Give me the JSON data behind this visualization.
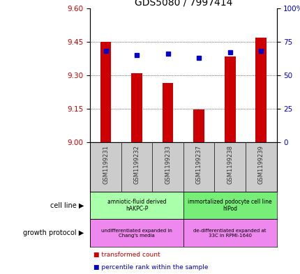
{
  "title": "GDS5080 / 7997414",
  "samples": [
    "GSM1199231",
    "GSM1199232",
    "GSM1199233",
    "GSM1199237",
    "GSM1199238",
    "GSM1199239"
  ],
  "red_values": [
    9.45,
    9.31,
    9.265,
    9.148,
    9.385,
    9.47
  ],
  "blue_values": [
    68,
    65,
    66,
    63,
    67,
    68
  ],
  "ylim_red": [
    9.0,
    9.6
  ],
  "ylim_blue": [
    0,
    100
  ],
  "yticks_red": [
    9.0,
    9.15,
    9.3,
    9.45,
    9.6
  ],
  "yticks_blue": [
    0,
    25,
    50,
    75,
    100
  ],
  "red_color": "#cc0000",
  "blue_color": "#0000cc",
  "cell_line_groups": [
    {
      "label": "amniotic-fluid derived\nhAKPC-P",
      "start": 0,
      "end": 3,
      "color": "#aaffaa"
    },
    {
      "label": "immortalized podocyte cell line\nhIPod",
      "start": 3,
      "end": 6,
      "color": "#77ee77"
    }
  ],
  "growth_protocol_groups": [
    {
      "label": "undifferentiated expanded in\nChang's media",
      "start": 0,
      "end": 3,
      "color": "#ee88ee"
    },
    {
      "label": "de-differentiated expanded at\n33C in RPMI-1640",
      "start": 3,
      "end": 6,
      "color": "#ee88ee"
    }
  ],
  "legend_red_label": "transformed count",
  "legend_blue_label": "percentile rank within the sample",
  "cell_line_label": "cell line",
  "growth_protocol_label": "growth protocol",
  "bar_width": 0.35,
  "title_fontsize": 10,
  "sample_label_color": "#333333",
  "gray_bg": "#cccccc"
}
